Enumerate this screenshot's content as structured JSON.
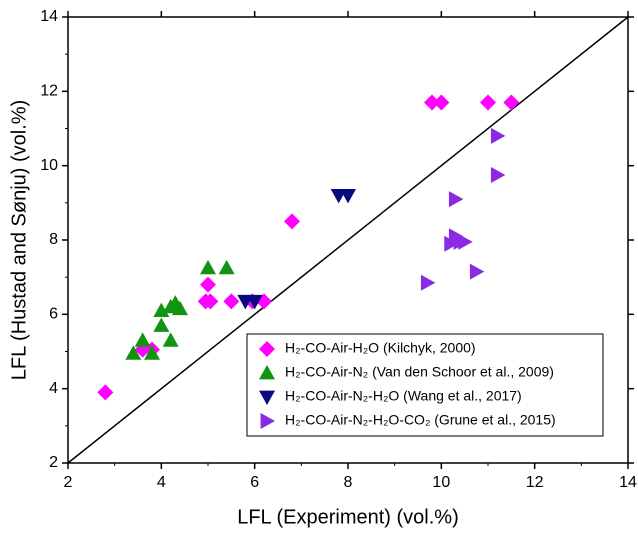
{
  "chart_data": {
    "type": "scatter",
    "xlabel": "LFL (Experiment) (vol.%)",
    "ylabel": "LFL (Hustad and Sønju) (vol.%)",
    "xlim": [
      2,
      14
    ],
    "ylim": [
      2,
      14
    ],
    "xticks": [
      2,
      4,
      6,
      8,
      10,
      12,
      14
    ],
    "yticks": [
      2,
      4,
      6,
      8,
      10,
      12,
      14
    ],
    "reference_line": "y=x",
    "legend": "lower right",
    "series": [
      {
        "name": "H₂-CO-Air-H₂O (Kilchyk, 2000)",
        "color": "#ff00ff",
        "marker": "diamond",
        "x": [
          2.8,
          3.6,
          3.8,
          4.95,
          5.05,
          5.0,
          5.5,
          5.95,
          6.2,
          6.8,
          9.8,
          10.0,
          11.0,
          11.5
        ],
        "y": [
          3.9,
          5.05,
          5.05,
          6.35,
          6.35,
          6.8,
          6.35,
          6.35,
          6.35,
          8.5,
          11.7,
          11.7,
          11.7,
          11.7
        ]
      },
      {
        "name": "H₂-CO-Air-N₂ (Van den Schoor et al., 2009)",
        "color": "#129412",
        "marker": "triangle-up",
        "x": [
          3.4,
          3.6,
          3.8,
          4.0,
          4.0,
          4.2,
          4.2,
          4.3,
          4.4,
          5.0,
          5.4
        ],
        "y": [
          4.95,
          5.3,
          4.95,
          6.1,
          5.7,
          6.2,
          5.3,
          6.3,
          6.15,
          7.25,
          7.25
        ]
      },
      {
        "name": "H₂-CO-Air-N₂-H₂O (Wang et al., 2017)",
        "color": "#0a0a80",
        "marker": "triangle-down",
        "x": [
          5.8,
          6.0,
          7.8,
          8.0
        ],
        "y": [
          6.35,
          6.35,
          9.2,
          9.2
        ]
      },
      {
        "name": "H₂-CO-Air-N₂-H₂O-CO₂ (Grune et al., 2015)",
        "color": "#8a2be2",
        "marker": "triangle-right",
        "x": [
          9.7,
          10.2,
          10.3,
          10.4,
          10.5,
          10.3,
          10.75,
          11.2,
          11.2
        ],
        "y": [
          6.85,
          7.9,
          8.1,
          7.95,
          7.95,
          9.1,
          7.15,
          9.75,
          10.8
        ]
      }
    ]
  }
}
